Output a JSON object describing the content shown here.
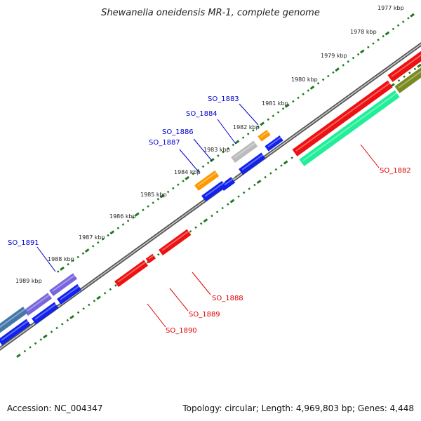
{
  "title": "Shewanella oneidensis MR-1, complete genome",
  "footer": {
    "accession": "Accession: NC_004347",
    "topology": "Topology: circular; Length: 4,969,803 bp; Genes: 4,448"
  },
  "backbone_color": "#7a7a7a",
  "tick_color": "#1e7a1e",
  "kbp_labels": [
    "1977 kbp",
    "1978 kbp",
    "1979 kbp",
    "1980 kbp",
    "1981 kbp",
    "1982 kbp",
    "1983 kbp",
    "1984 kbp",
    "1985 kbp",
    "1986 kbp",
    "1987 kbp",
    "1988 kbp",
    "1989 kbp"
  ],
  "gene_labels": {
    "upper": [
      {
        "name": "SO_1883",
        "color": "#0000cc"
      },
      {
        "name": "SO_1884",
        "color": "#0000cc"
      },
      {
        "name": "SO_1886",
        "color": "#0000cc"
      },
      {
        "name": "SO_1887",
        "color": "#0000cc"
      },
      {
        "name": "SO_1891",
        "color": "#0000cc"
      }
    ],
    "lower": [
      {
        "name": "SO_1882",
        "color": "#dd0000"
      },
      {
        "name": "SO_1888",
        "color": "#dd0000"
      },
      {
        "name": "SO_1889",
        "color": "#dd0000"
      },
      {
        "name": "SO_1890",
        "color": "#dd0000"
      }
    ]
  },
  "gene_colors": {
    "red": "#ee1111",
    "blue": "#1122ee",
    "orange": "#ff9900",
    "gray": "#bbbbbb",
    "teal": "#22ee99",
    "olive": "#7a8a22",
    "purple": "#7766dd",
    "steel": "#4477aa"
  }
}
